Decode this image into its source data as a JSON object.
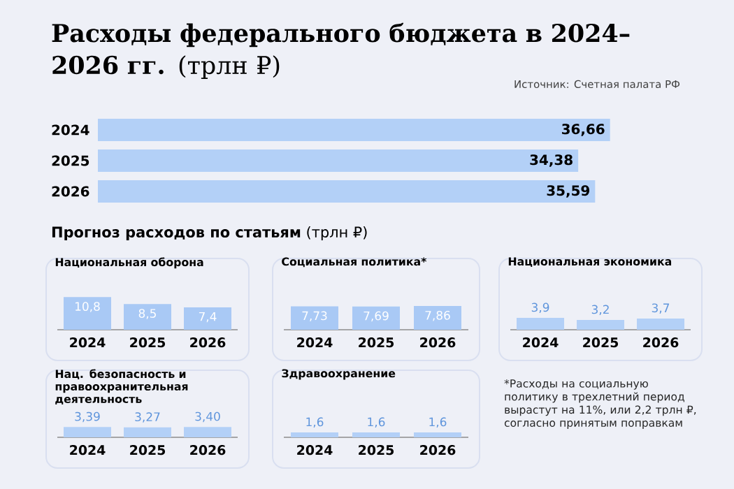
{
  "chart_data": [
    {
      "type": "bar",
      "orientation": "horizontal",
      "title": "**Расходы федерального бюджета в 2024–2026 гг.** (трлн ₽)",
      "annotations": [
        "Источник: Счетная палата РФ"
      ],
      "categories": [
        "2024",
        "2025",
        "2026"
      ],
      "values": [
        36.66,
        34.38,
        35.59
      ],
      "value_labels": [
        "36,66",
        "34,38",
        "35,59"
      ],
      "color": "#b3d0f7",
      "tick_labels": "y"
    },
    {
      "type": "bar",
      "title": "Национальная оборона",
      "categories": [
        "2024",
        "2025",
        "2026"
      ],
      "values": [
        10.8,
        8.5,
        7.4
      ],
      "value_labels": [
        "10,8",
        "8,5",
        "7,4"
      ],
      "color": "#a9c9f5",
      "tick_labels": "x"
    },
    {
      "type": "bar",
      "title": "Социальная политика*",
      "categories": [
        "2024",
        "2025",
        "2026"
      ],
      "values": [
        7.73,
        7.69,
        7.86
      ],
      "value_labels": [
        "7,73",
        "7,69",
        "7,86"
      ],
      "color": "#a9c9f5",
      "tick_labels": "x"
    },
    {
      "type": "bar",
      "title": "Национальная экономика",
      "categories": [
        "2024",
        "2025",
        "2026"
      ],
      "values": [
        3.9,
        3.2,
        3.7
      ],
      "value_labels": [
        "3,9",
        "3,2",
        "3,7"
      ],
      "color": "#b3d0f7",
      "tick_labels": "x"
    },
    {
      "type": "bar",
      "title": "Нац. безопасность и правоохранительная деятельность",
      "categories": [
        "2024",
        "2025",
        "2026"
      ],
      "values": [
        3.39,
        3.27,
        3.4
      ],
      "value_labels": [
        "3,39",
        "3,27",
        "3,40"
      ],
      "color": "#b3d0f7",
      "tick_labels": "x"
    },
    {
      "type": "bar",
      "title": "Здравоохранение",
      "categories": [
        "2024",
        "2025",
        "2026"
      ],
      "values": [
        1.6,
        1.6,
        1.6
      ],
      "value_labels": [
        "1,6",
        "1,6",
        "1,6"
      ],
      "color": "#b3d0f7",
      "tick_labels": "x"
    },
    {
      "type": "other",
      "title": "**Прогноз расходов по статьям** (трлн ₽)",
      "annotations": [
        "*Расходы на социальную политику в трехлетний период вырастут на 11%, или 2,2 трлн ₽, согласно принятым поправкам"
      ]
    }
  ]
}
